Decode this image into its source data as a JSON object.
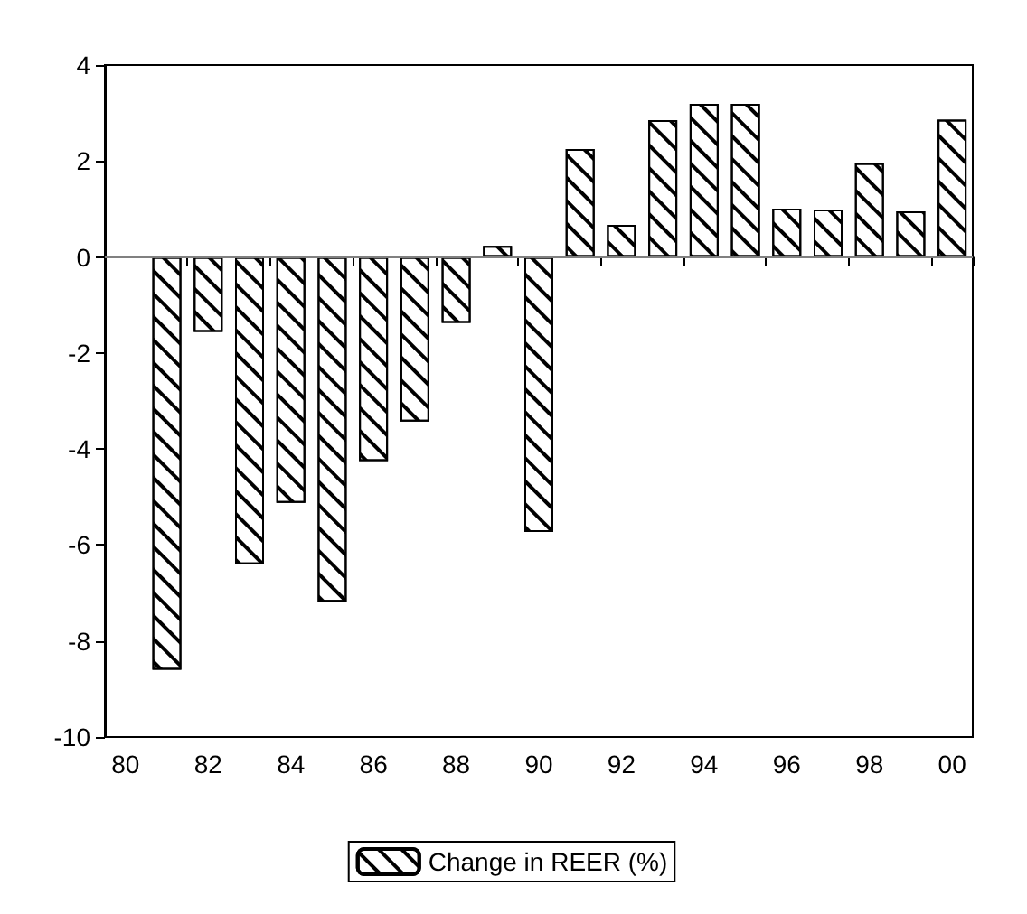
{
  "chart_data": {
    "type": "bar",
    "categories": [
      "80",
      null,
      "82",
      null,
      "84",
      null,
      "86",
      null,
      "88",
      null,
      "90",
      null,
      "92",
      null,
      "94",
      null,
      "96",
      null,
      "98",
      null,
      "00"
    ],
    "series": [
      {
        "name": "Change in REER (%)",
        "color": "#ffffff",
        "values": [
          null,
          -8.6,
          -1.56,
          -6.4,
          -5.12,
          -7.18,
          -4.25,
          -3.43,
          -1.37,
          0.23,
          -5.73,
          2.25,
          0.67,
          2.85,
          3.19,
          3.19,
          1.01,
          0.99,
          1.96,
          0.95,
          2.86
        ]
      }
    ],
    "ylim": [
      -10,
      4
    ],
    "yticks": [
      -10,
      -8,
      -6,
      -4,
      -2,
      0,
      2,
      4
    ],
    "ref_lines": [
      {
        "axis": "y",
        "value": 0,
        "color": "#808080"
      }
    ],
    "grid": false,
    "legend": "bottom"
  }
}
